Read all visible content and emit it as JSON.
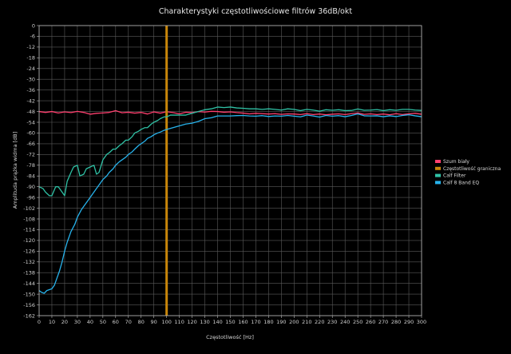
{
  "chart_data": {
    "type": "line",
    "title": "Charakterystyki częstotliwościowe filtrów 36dB/okt",
    "xlabel": "Częstotliwość [Hz]",
    "ylabel": "Amplituda prążka widma [dB]",
    "xlim": [
      0,
      300
    ],
    "ylim": [
      -162,
      0
    ],
    "xticks": [
      0,
      10,
      20,
      30,
      40,
      50,
      60,
      70,
      80,
      90,
      100,
      110,
      120,
      130,
      140,
      150,
      160,
      170,
      180,
      190,
      200,
      210,
      220,
      230,
      240,
      250,
      260,
      270,
      280,
      290,
      300
    ],
    "yticks": [
      0,
      -6,
      -12,
      -18,
      -24,
      -30,
      -36,
      -42,
      -48,
      -54,
      -60,
      -66,
      -72,
      -78,
      -84,
      -90,
      -96,
      -102,
      -108,
      -114,
      -120,
      -126,
      -132,
      -138,
      -144,
      -150,
      -156,
      -162
    ],
    "grid": true,
    "legend_position": "right",
    "series": [
      {
        "name": "Szum biały",
        "color": "#ff3f6e",
        "x": [
          0,
          5,
          10,
          15,
          20,
          25,
          30,
          35,
          40,
          45,
          50,
          55,
          60,
          65,
          70,
          75,
          80,
          85,
          90,
          95,
          100,
          105,
          110,
          115,
          120,
          125,
          130,
          135,
          140,
          145,
          150,
          155,
          160,
          165,
          170,
          175,
          180,
          185,
          190,
          195,
          200,
          205,
          210,
          215,
          220,
          225,
          230,
          235,
          240,
          245,
          250,
          255,
          260,
          265,
          270,
          275,
          280,
          285,
          290,
          295,
          300
        ],
        "y": [
          -48,
          -48.5,
          -48,
          -48.8,
          -48.2,
          -48.6,
          -47.9,
          -48.5,
          -49.5,
          -49,
          -48.8,
          -48.5,
          -47.5,
          -48.7,
          -48.4,
          -48.9,
          -48.5,
          -49.4,
          -48.2,
          -48.9,
          -48.1,
          -48.6,
          -49.3,
          -48.4,
          -48.6,
          -48.1,
          -48.3,
          -47.9,
          -48,
          -48.4,
          -48.2,
          -48.6,
          -48.9,
          -49.3,
          -49,
          -49.2,
          -49.4,
          -49.2,
          -49.6,
          -49.3,
          -49.4,
          -49.7,
          -49.2,
          -49.7,
          -49.4,
          -49.8,
          -49.5,
          -49.3,
          -49.7,
          -49.2,
          -48.8,
          -49.6,
          -49.3,
          -49.7,
          -49.4,
          -49.8,
          -49.2,
          -49.7,
          -49.3,
          -49,
          -49.5
        ]
      },
      {
        "name": "Częstotliwość graniczna",
        "color": "#c8860a",
        "x": [
          100,
          100
        ],
        "y": [
          0,
          -162
        ]
      },
      {
        "name": "Calf Filter",
        "color": "#2fc1a5",
        "x": [
          0,
          3,
          5,
          8,
          10,
          13,
          15,
          18,
          20,
          22,
          25,
          27,
          30,
          32,
          35,
          37,
          40,
          43,
          45,
          47,
          50,
          53,
          55,
          58,
          60,
          63,
          65,
          68,
          70,
          73,
          75,
          78,
          80,
          83,
          85,
          88,
          90,
          93,
          95,
          98,
          100,
          103,
          105,
          108,
          110,
          115,
          120,
          125,
          130,
          135,
          140,
          145,
          150,
          155,
          160,
          165,
          170,
          175,
          180,
          185,
          190,
          195,
          200,
          205,
          210,
          215,
          220,
          225,
          230,
          235,
          240,
          245,
          250,
          255,
          260,
          265,
          270,
          275,
          280,
          285,
          290,
          295,
          300
        ],
        "y": [
          -90,
          -91,
          -93,
          -95,
          -95,
          -90,
          -90,
          -93,
          -95,
          -87,
          -82,
          -79,
          -78,
          -84,
          -83,
          -80,
          -79,
          -78,
          -83,
          -82,
          -75,
          -72,
          -71,
          -69,
          -69,
          -67,
          -66,
          -64,
          -64,
          -62,
          -60,
          -59,
          -58,
          -57,
          -57,
          -55,
          -54,
          -53,
          -52,
          -51,
          -51,
          -50,
          -50,
          -50,
          -50,
          -50,
          -49,
          -48,
          -47,
          -46.5,
          -45.5,
          -45.8,
          -45.5,
          -46,
          -46.2,
          -46.5,
          -46.5,
          -46.8,
          -46.5,
          -46.8,
          -47.2,
          -46.5,
          -46.8,
          -47.5,
          -46.8,
          -47.2,
          -47.8,
          -47,
          -47.3,
          -47,
          -47.5,
          -47.4,
          -46.6,
          -47.3,
          -47.2,
          -46.9,
          -47.5,
          -47,
          -47.3,
          -46.8,
          -46.8,
          -47.2,
          -47.4
        ]
      },
      {
        "name": "Calf 8 Band EQ",
        "color": "#27b3ec",
        "x": [
          0,
          2,
          4,
          6,
          8,
          10,
          12,
          14,
          16,
          18,
          20,
          22,
          25,
          28,
          30,
          33,
          35,
          38,
          40,
          43,
          45,
          48,
          50,
          53,
          55,
          58,
          60,
          63,
          65,
          68,
          70,
          73,
          75,
          78,
          80,
          83,
          85,
          88,
          90,
          93,
          95,
          98,
          100,
          105,
          110,
          115,
          120,
          125,
          130,
          135,
          140,
          145,
          150,
          155,
          160,
          165,
          170,
          175,
          180,
          185,
          190,
          195,
          200,
          205,
          210,
          215,
          220,
          225,
          230,
          235,
          240,
          245,
          250,
          255,
          260,
          265,
          270,
          275,
          280,
          285,
          290,
          295,
          300
        ],
        "y": [
          -148,
          -149,
          -149.5,
          -148,
          -147.5,
          -147,
          -145,
          -141,
          -137,
          -132,
          -126,
          -121,
          -115,
          -111,
          -107,
          -103,
          -101,
          -98,
          -96,
          -93,
          -91,
          -88,
          -86,
          -84,
          -82,
          -80,
          -78,
          -76,
          -75,
          -73.5,
          -72,
          -70.5,
          -69,
          -67,
          -66,
          -64.5,
          -63,
          -62,
          -61,
          -60,
          -59.5,
          -58.5,
          -58,
          -57,
          -56,
          -55,
          -54.5,
          -53.5,
          -52,
          -51.5,
          -50.5,
          -50.5,
          -50.5,
          -50.3,
          -50.2,
          -50.5,
          -50.6,
          -50.3,
          -50.8,
          -50.5,
          -50.6,
          -50.2,
          -50.6,
          -51,
          -50,
          -50.5,
          -51.1,
          -50.2,
          -50.6,
          -50.3,
          -50.9,
          -50.2,
          -49.3,
          -50.4,
          -50.5,
          -50.4,
          -50.9,
          -50.4,
          -50.8,
          -50.2,
          -49.8,
          -50.4,
          -50.9
        ]
      }
    ]
  }
}
